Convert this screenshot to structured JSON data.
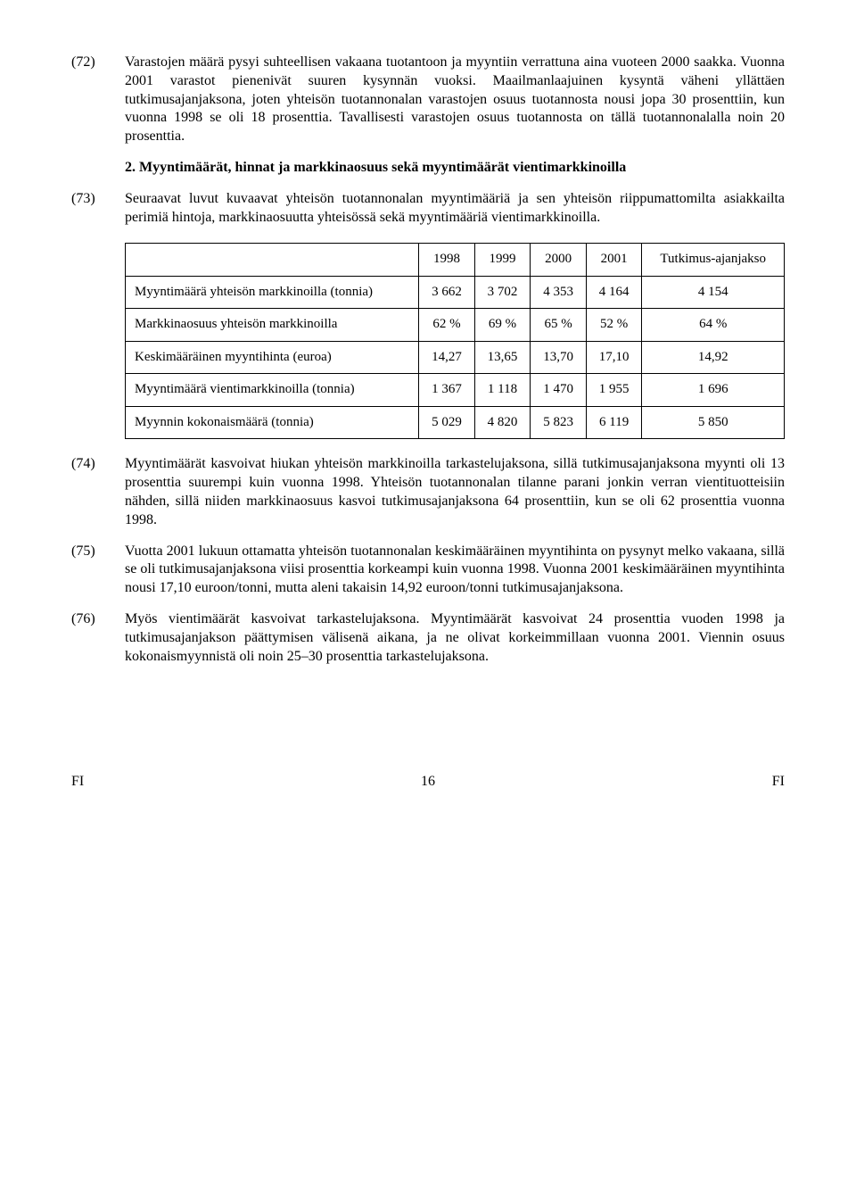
{
  "paragraphs": {
    "p72_num": "(72)",
    "p72_text": "Varastojen määrä pysyi suhteellisen vakaana tuotantoon ja myyntiin verrattuna aina vuoteen 2000 saakka. Vuonna 2001 varastot pienenivät suuren kysynnän vuoksi. Maailmanlaajuinen kysyntä väheni yllättäen tutkimusajanjaksona, joten yhteisön tuotannonalan varastojen osuus tuotannosta nousi jopa 30 prosenttiin, kun vuonna 1998 se oli 18 prosenttia. Tavallisesti varastojen osuus tuotannosta on tällä tuotannonalalla noin 20 prosenttia.",
    "heading": "2. Myyntimäärät, hinnat ja markkinaosuus sekä myyntimäärät vientimarkkinoilla",
    "p73_num": "(73)",
    "p73_text": "Seuraavat luvut kuvaavat yhteisön tuotannonalan myyntimääriä ja sen yhteisön riippumattomilta asiakkailta perimiä hintoja, markkinaosuutta yhteisössä sekä myyntimääriä vientimarkkinoilla.",
    "p74_num": "(74)",
    "p74_text": "Myyntimäärät kasvoivat hiukan yhteisön markkinoilla tarkastelujaksona, sillä tutkimusajanjaksona myynti oli 13 prosenttia suurempi kuin vuonna 1998. Yhteisön tuotannonalan tilanne parani jonkin verran vientituotteisiin nähden, sillä niiden markkinaosuus kasvoi tutkimusajanjaksona 64 prosenttiin, kun se oli 62 prosenttia vuonna 1998.",
    "p75_num": "(75)",
    "p75_text": "Vuotta 2001 lukuun ottamatta yhteisön tuotannonalan keskimääräinen myyntihinta on pysynyt melko vakaana, sillä se oli tutkimusajanjaksona viisi prosenttia korkeampi kuin vuonna 1998. Vuonna 2001 keskimääräinen myyntihinta nousi 17,10 euroon/tonni, mutta aleni takaisin 14,92 euroon/tonni tutkimusajanjaksona.",
    "p76_num": "(76)",
    "p76_text": "Myös vientimäärät kasvoivat tarkastelujaksona. Myyntimäärät kasvoivat 24 prosenttia vuoden 1998 ja tutkimusajanjakson päättymisen välisenä aikana, ja ne olivat korkeimmillaan vuonna 2001. Viennin osuus kokonaismyynnistä oli noin 25–30 prosenttia tarkastelujaksona."
  },
  "table": {
    "headers": [
      "",
      "1998",
      "1999",
      "2000",
      "2001",
      "Tutkimus-ajanjakso"
    ],
    "rows": [
      {
        "label": "Myyntimäärä yhteisön markkinoilla (tonnia)",
        "cells": [
          "3 662",
          "3 702",
          "4 353",
          "4 164",
          "4 154"
        ]
      },
      {
        "label": "Markkinaosuus yhteisön markkinoilla",
        "cells": [
          "62 %",
          "69 %",
          "65 %",
          "52 %",
          "64 %"
        ]
      },
      {
        "label": "Keskimääräinen myyntihinta (euroa)",
        "cells": [
          "14,27",
          "13,65",
          "13,70",
          "17,10",
          "14,92"
        ]
      },
      {
        "label": "Myyntimäärä vientimarkkinoilla (tonnia)",
        "cells": [
          "1 367",
          "1 118",
          "1 470",
          "1 955",
          "1 696"
        ]
      },
      {
        "label": "Myynnin kokonaismäärä (tonnia)",
        "cells": [
          "5 029",
          "4 820",
          "5 823",
          "6 119",
          "5 850"
        ]
      }
    ]
  },
  "footer": {
    "left": "FI",
    "page": "16",
    "right": "FI"
  }
}
